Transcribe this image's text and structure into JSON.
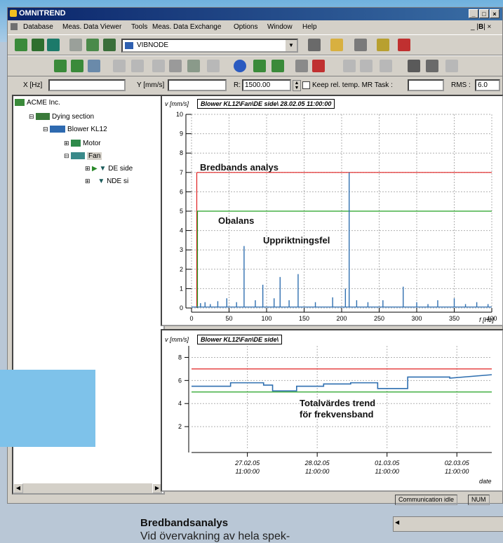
{
  "window": {
    "title": "OMNITREND",
    "min": "_",
    "max": "□",
    "close": "×"
  },
  "menu": [
    "Database",
    "Meas. Data Viewer",
    "Tools",
    "Meas. Data Exchange",
    "Options",
    "Window",
    "Help"
  ],
  "toolbar": {
    "node_select": "VIBNODE"
  },
  "fields": {
    "x_label": "X [Hz]",
    "x_value": "",
    "y_label": "Y [mm/s]",
    "y_value": "",
    "r_label": "R:",
    "r_value": "1500.00",
    "keep_label": "Keep rel. temp. MR Task :",
    "keep_value": "",
    "rms_label": "RMS :",
    "rms_value": "6.0"
  },
  "tree": {
    "root": "ACME Inc.",
    "section": "Dying section",
    "blower": "Blower KL12",
    "motor": "Motor",
    "fan": "Fan",
    "de": "DE side",
    "nde": "NDE si"
  },
  "annotations": {
    "spectrum_band": "Bredbands analys",
    "unbalance": "Obalans",
    "misalignment": "Uppriktningsfel",
    "trend_line1": "Totalvärdes trend",
    "trend_line2": "för frekvensband"
  },
  "status": {
    "comm": "Communication idle",
    "num": "NUM"
  },
  "article": {
    "heading": "Bredbandsanalys",
    "body": "Vid övervakning av hela spek-"
  },
  "chart_data": [
    {
      "type": "line",
      "title": "Blower KL12\\Fan\\DE side\\   28.02.05   11:00:00",
      "ylabel": "v [mm/s]",
      "xlabel": "f [Hz]",
      "xlim": [
        0,
        400
      ],
      "ylim": [
        0,
        10
      ],
      "xticks": [
        0,
        50,
        100,
        150,
        200,
        250,
        300,
        350,
        400
      ],
      "yticks": [
        0,
        1,
        2,
        3,
        4,
        5,
        6,
        7,
        8,
        9,
        10
      ],
      "band": {
        "start_x": 7,
        "alarm": 7,
        "warning": 5
      },
      "peaks": [
        {
          "x": 12,
          "y": 0.25
        },
        {
          "x": 18,
          "y": 0.3
        },
        {
          "x": 25,
          "y": 0.2
        },
        {
          "x": 35,
          "y": 0.35
        },
        {
          "x": 47,
          "y": 0.5
        },
        {
          "x": 60,
          "y": 0.3
        },
        {
          "x": 70,
          "y": 3.2
        },
        {
          "x": 85,
          "y": 0.4
        },
        {
          "x": 95,
          "y": 1.2
        },
        {
          "x": 110,
          "y": 0.5
        },
        {
          "x": 118,
          "y": 1.6
        },
        {
          "x": 130,
          "y": 0.4
        },
        {
          "x": 142,
          "y": 1.75
        },
        {
          "x": 165,
          "y": 0.3
        },
        {
          "x": 188,
          "y": 0.55
        },
        {
          "x": 205,
          "y": 1.0
        },
        {
          "x": 210,
          "y": 7.0
        },
        {
          "x": 220,
          "y": 0.4
        },
        {
          "x": 235,
          "y": 0.3
        },
        {
          "x": 255,
          "y": 0.4
        },
        {
          "x": 282,
          "y": 1.1
        },
        {
          "x": 300,
          "y": 0.3
        },
        {
          "x": 315,
          "y": 0.2
        },
        {
          "x": 328,
          "y": 0.4
        },
        {
          "x": 350,
          "y": 0.5
        },
        {
          "x": 365,
          "y": 0.2
        },
        {
          "x": 380,
          "y": 0.3
        },
        {
          "x": 395,
          "y": 0.2
        }
      ],
      "colors": {
        "alarm": "#e02020",
        "warning": "#20a020",
        "signal": "#2f6fb0"
      }
    },
    {
      "type": "line",
      "title": "Blower KL12\\Fan\\DE side\\",
      "ylabel": "v [mm/s]",
      "xlabel": "date",
      "ylim": [
        0,
        9
      ],
      "yticks": [
        2,
        4,
        6,
        8
      ],
      "xtick_labels": [
        [
          "27.02.05",
          "11:00:00"
        ],
        [
          "28.02.05",
          "11:00:00"
        ],
        [
          "01.03.05",
          "11:00:00"
        ],
        [
          "02.03.05",
          "11:00:00"
        ]
      ],
      "alarm": 7,
      "warning": 5,
      "trend_x": [
        0,
        0.13,
        0.13,
        0.24,
        0.24,
        0.27,
        0.27,
        0.35,
        0.35,
        0.44,
        0.44,
        0.53,
        0.53,
        0.62,
        0.62,
        0.72,
        0.72,
        0.86,
        0.86,
        1.0
      ],
      "trend_y": [
        5.5,
        5.5,
        5.8,
        5.8,
        5.6,
        5.6,
        5.1,
        5.1,
        5.5,
        5.5,
        5.7,
        5.7,
        5.8,
        5.8,
        5.3,
        5.3,
        6.3,
        6.3,
        6.2,
        6.5
      ],
      "colors": {
        "alarm": "#e02020",
        "warning": "#20a020",
        "signal": "#2f6fb0"
      }
    }
  ]
}
